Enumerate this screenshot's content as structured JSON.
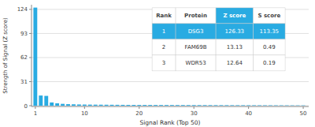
{
  "chart_data": {
    "type": "bar",
    "xlabel": "Signal Rank (Top 50)",
    "ylabel": "Strength of Signal (Z score)",
    "x": [
      1,
      2,
      3,
      4,
      5,
      6,
      7,
      8,
      9,
      10,
      11,
      12,
      13,
      14,
      15,
      16,
      17,
      18,
      19,
      20,
      21,
      22,
      23,
      24,
      25,
      26,
      27,
      28,
      29,
      30,
      31,
      32,
      33,
      34,
      35,
      36,
      37,
      38,
      39,
      40,
      41,
      42,
      43,
      44,
      45,
      46,
      47,
      48,
      49,
      50
    ],
    "values": [
      126.33,
      13.13,
      12.64,
      4.2,
      3.1,
      2.4,
      2.0,
      1.8,
      1.6,
      1.5,
      1.4,
      1.35,
      1.3,
      1.25,
      1.2,
      1.15,
      1.1,
      1.05,
      1.02,
      1.0,
      0.98,
      0.95,
      0.93,
      0.91,
      0.89,
      0.87,
      0.85,
      0.83,
      0.81,
      0.79,
      0.77,
      0.75,
      0.73,
      0.71,
      0.69,
      0.67,
      0.65,
      0.63,
      0.61,
      0.59,
      0.57,
      0.55,
      0.53,
      0.51,
      0.49,
      0.47,
      0.45,
      0.43,
      0.41,
      0.39
    ],
    "color": "#29ABE2",
    "xlim": [
      0.3,
      51
    ],
    "xticks": [
      1,
      10,
      20,
      30,
      40,
      50
    ],
    "ylim": [
      -1,
      130
    ],
    "yticks": [
      0,
      31,
      62,
      93,
      124
    ],
    "grid": true,
    "table": {
      "headers": [
        "Rank",
        "Protein",
        "Z score",
        "S score"
      ],
      "rows": [
        [
          "1",
          "DSG3",
          "126.33",
          "113.35"
        ],
        [
          "2",
          "FAM69B",
          "13.13",
          "0.49"
        ],
        [
          "3",
          "WDR53",
          "12.64",
          "0.19"
        ]
      ]
    }
  }
}
